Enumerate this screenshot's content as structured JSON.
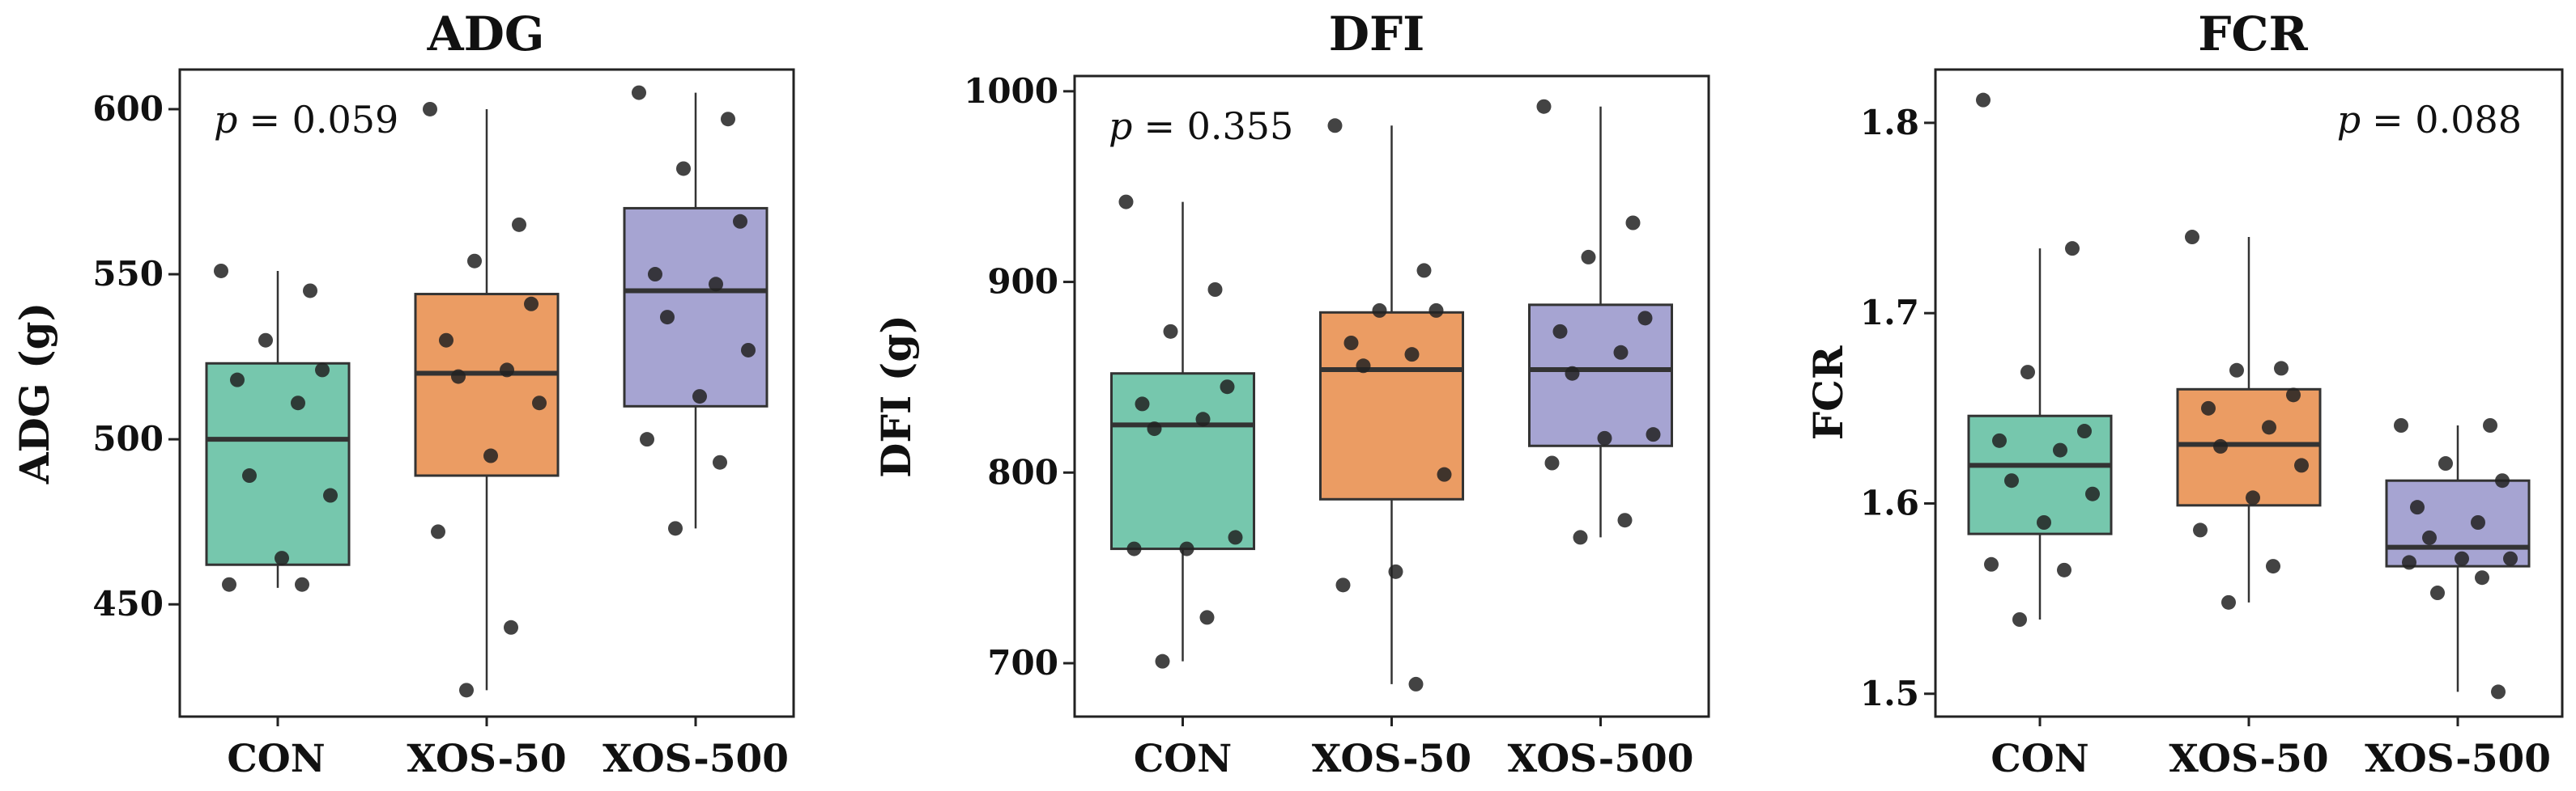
{
  "chart_data": [
    {
      "type": "box",
      "title": "ADG",
      "ylabel": "ADG (g)",
      "xlabel": "",
      "ylim": [
        416,
        612
      ],
      "yticks": [
        450,
        500,
        550,
        600
      ],
      "categories": [
        "CON",
        "XOS-50",
        "XOS-500"
      ],
      "colors": [
        "#76C7AD",
        "#EB9C63",
        "#A6A4D2"
      ],
      "p_label": "p",
      "p_value": "= 0.059",
      "p_position": "top-left",
      "boxes": [
        {
          "name": "CON",
          "whisker_low": 455,
          "q1": 462,
          "median": 500,
          "q3": 523,
          "whisker_high": 551
        },
        {
          "name": "XOS-50",
          "whisker_low": 424,
          "q1": 489,
          "median": 520,
          "q3": 544,
          "whisker_high": 600
        },
        {
          "name": "XOS-500",
          "whisker_low": 473,
          "q1": 510,
          "median": 545,
          "q3": 570,
          "whisker_high": 605
        }
      ],
      "points": [
        [
          551,
          545,
          530,
          521,
          518,
          511,
          489,
          483,
          464,
          456,
          456
        ],
        [
          600,
          565,
          554,
          541,
          530,
          521,
          519,
          511,
          495,
          472,
          443,
          424
        ],
        [
          605,
          597,
          582,
          566,
          550,
          547,
          537,
          527,
          513,
          500,
          493,
          473
        ]
      ]
    },
    {
      "type": "box",
      "title": "DFI",
      "ylabel": "DFI (g)",
      "xlabel": "",
      "ylim": [
        672,
        1008
      ],
      "yticks": [
        700,
        800,
        900,
        1000
      ],
      "categories": [
        "CON",
        "XOS-50",
        "XOS-500"
      ],
      "colors": [
        "#76C7AD",
        "#EB9C63",
        "#A6A4D2"
      ],
      "p_label": "p",
      "p_value": "= 0.355",
      "p_position": "top-left",
      "boxes": [
        {
          "name": "CON",
          "whisker_low": 701,
          "q1": 760,
          "median": 825,
          "q3": 852,
          "whisker_high": 942
        },
        {
          "name": "XOS-50",
          "whisker_low": 689,
          "q1": 786,
          "median": 854,
          "q3": 884,
          "whisker_high": 982
        },
        {
          "name": "XOS-500",
          "whisker_low": 766,
          "q1": 814,
          "median": 854,
          "q3": 888,
          "whisker_high": 992
        }
      ],
      "points": [
        [
          942,
          896,
          874,
          845,
          836,
          828,
          823,
          766,
          760,
          760,
          724,
          701
        ],
        [
          982,
          906,
          885,
          885,
          868,
          862,
          856,
          799,
          748,
          741,
          689
        ],
        [
          992,
          931,
          913,
          881,
          874,
          863,
          852,
          820,
          818,
          805,
          775,
          766
        ]
      ]
    },
    {
      "type": "box",
      "title": "FCR",
      "ylabel": "FCR",
      "xlabel": "",
      "ylim": [
        1.488,
        1.828
      ],
      "yticks": [
        1.5,
        1.6,
        1.7,
        1.8
      ],
      "categories": [
        "CON",
        "XOS-50",
        "XOS-500"
      ],
      "colors": [
        "#76C7AD",
        "#EB9C63",
        "#A6A4D2"
      ],
      "p_label": "p",
      "p_value": "= 0.088",
      "p_position": "top-right",
      "boxes": [
        {
          "name": "CON",
          "whisker_low": 1.539,
          "q1": 1.584,
          "median": 1.62,
          "q3": 1.646,
          "whisker_high": 1.734
        },
        {
          "name": "XOS-50",
          "whisker_low": 1.548,
          "q1": 1.599,
          "median": 1.631,
          "q3": 1.66,
          "whisker_high": 1.74
        },
        {
          "name": "XOS-500",
          "whisker_low": 1.501,
          "q1": 1.567,
          "median": 1.577,
          "q3": 1.612,
          "whisker_high": 1.641
        }
      ],
      "points": [
        [
          1.812,
          1.734,
          1.669,
          1.638,
          1.633,
          1.628,
          1.612,
          1.605,
          1.59,
          1.568,
          1.565,
          1.539
        ],
        [
          1.74,
          1.671,
          1.67,
          1.657,
          1.65,
          1.64,
          1.63,
          1.62,
          1.603,
          1.586,
          1.567,
          1.548
        ],
        [
          1.641,
          1.641,
          1.621,
          1.612,
          1.598,
          1.59,
          1.582,
          1.571,
          1.571,
          1.569,
          1.561,
          1.553,
          1.501
        ]
      ]
    }
  ]
}
